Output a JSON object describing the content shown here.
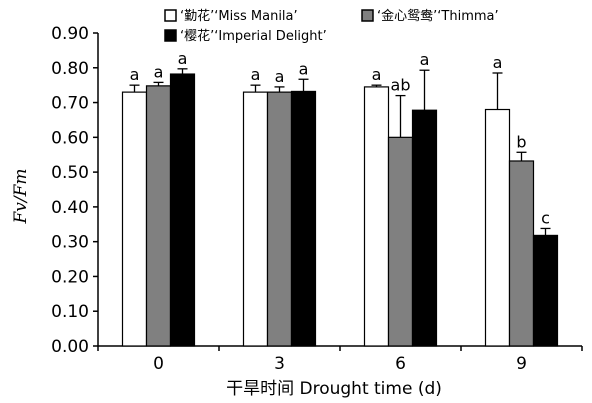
{
  "chart_data": {
    "type": "bar",
    "categories": [
      "0",
      "3",
      "6",
      "9"
    ],
    "xlabel": "干旱时间 Drought time (d)",
    "ylabel": "Fv/Fm",
    "ylim": [
      0,
      0.9
    ],
    "yticks": [
      "0.00",
      "0.10",
      "0.20",
      "0.30",
      "0.40",
      "0.50",
      "0.60",
      "0.70",
      "0.80",
      "0.90"
    ],
    "legend": "top",
    "grid": false,
    "series": [
      {
        "name": "‘勤花’‘Miss Manila’",
        "color": "#ffffff",
        "values": [
          0.73,
          0.73,
          0.745,
          0.68
        ],
        "errors": [
          0.02,
          0.02,
          0.005,
          0.105
        ],
        "labels": [
          "a",
          "a",
          "a",
          "a"
        ]
      },
      {
        "name": "‘金心鸳鸯’‘Thimma’",
        "color": "#808080",
        "values": [
          0.748,
          0.73,
          0.6,
          0.532
        ],
        "errors": [
          0.01,
          0.015,
          0.12,
          0.025
        ],
        "labels": [
          "a",
          "a",
          "ab",
          "b"
        ]
      },
      {
        "name": "‘樱花’‘Imperial Delight’",
        "color": "#000000",
        "values": [
          0.782,
          0.732,
          0.678,
          0.318
        ],
        "errors": [
          0.015,
          0.035,
          0.115,
          0.02
        ],
        "labels": [
          "a",
          "a",
          "a",
          "c"
        ]
      }
    ]
  }
}
